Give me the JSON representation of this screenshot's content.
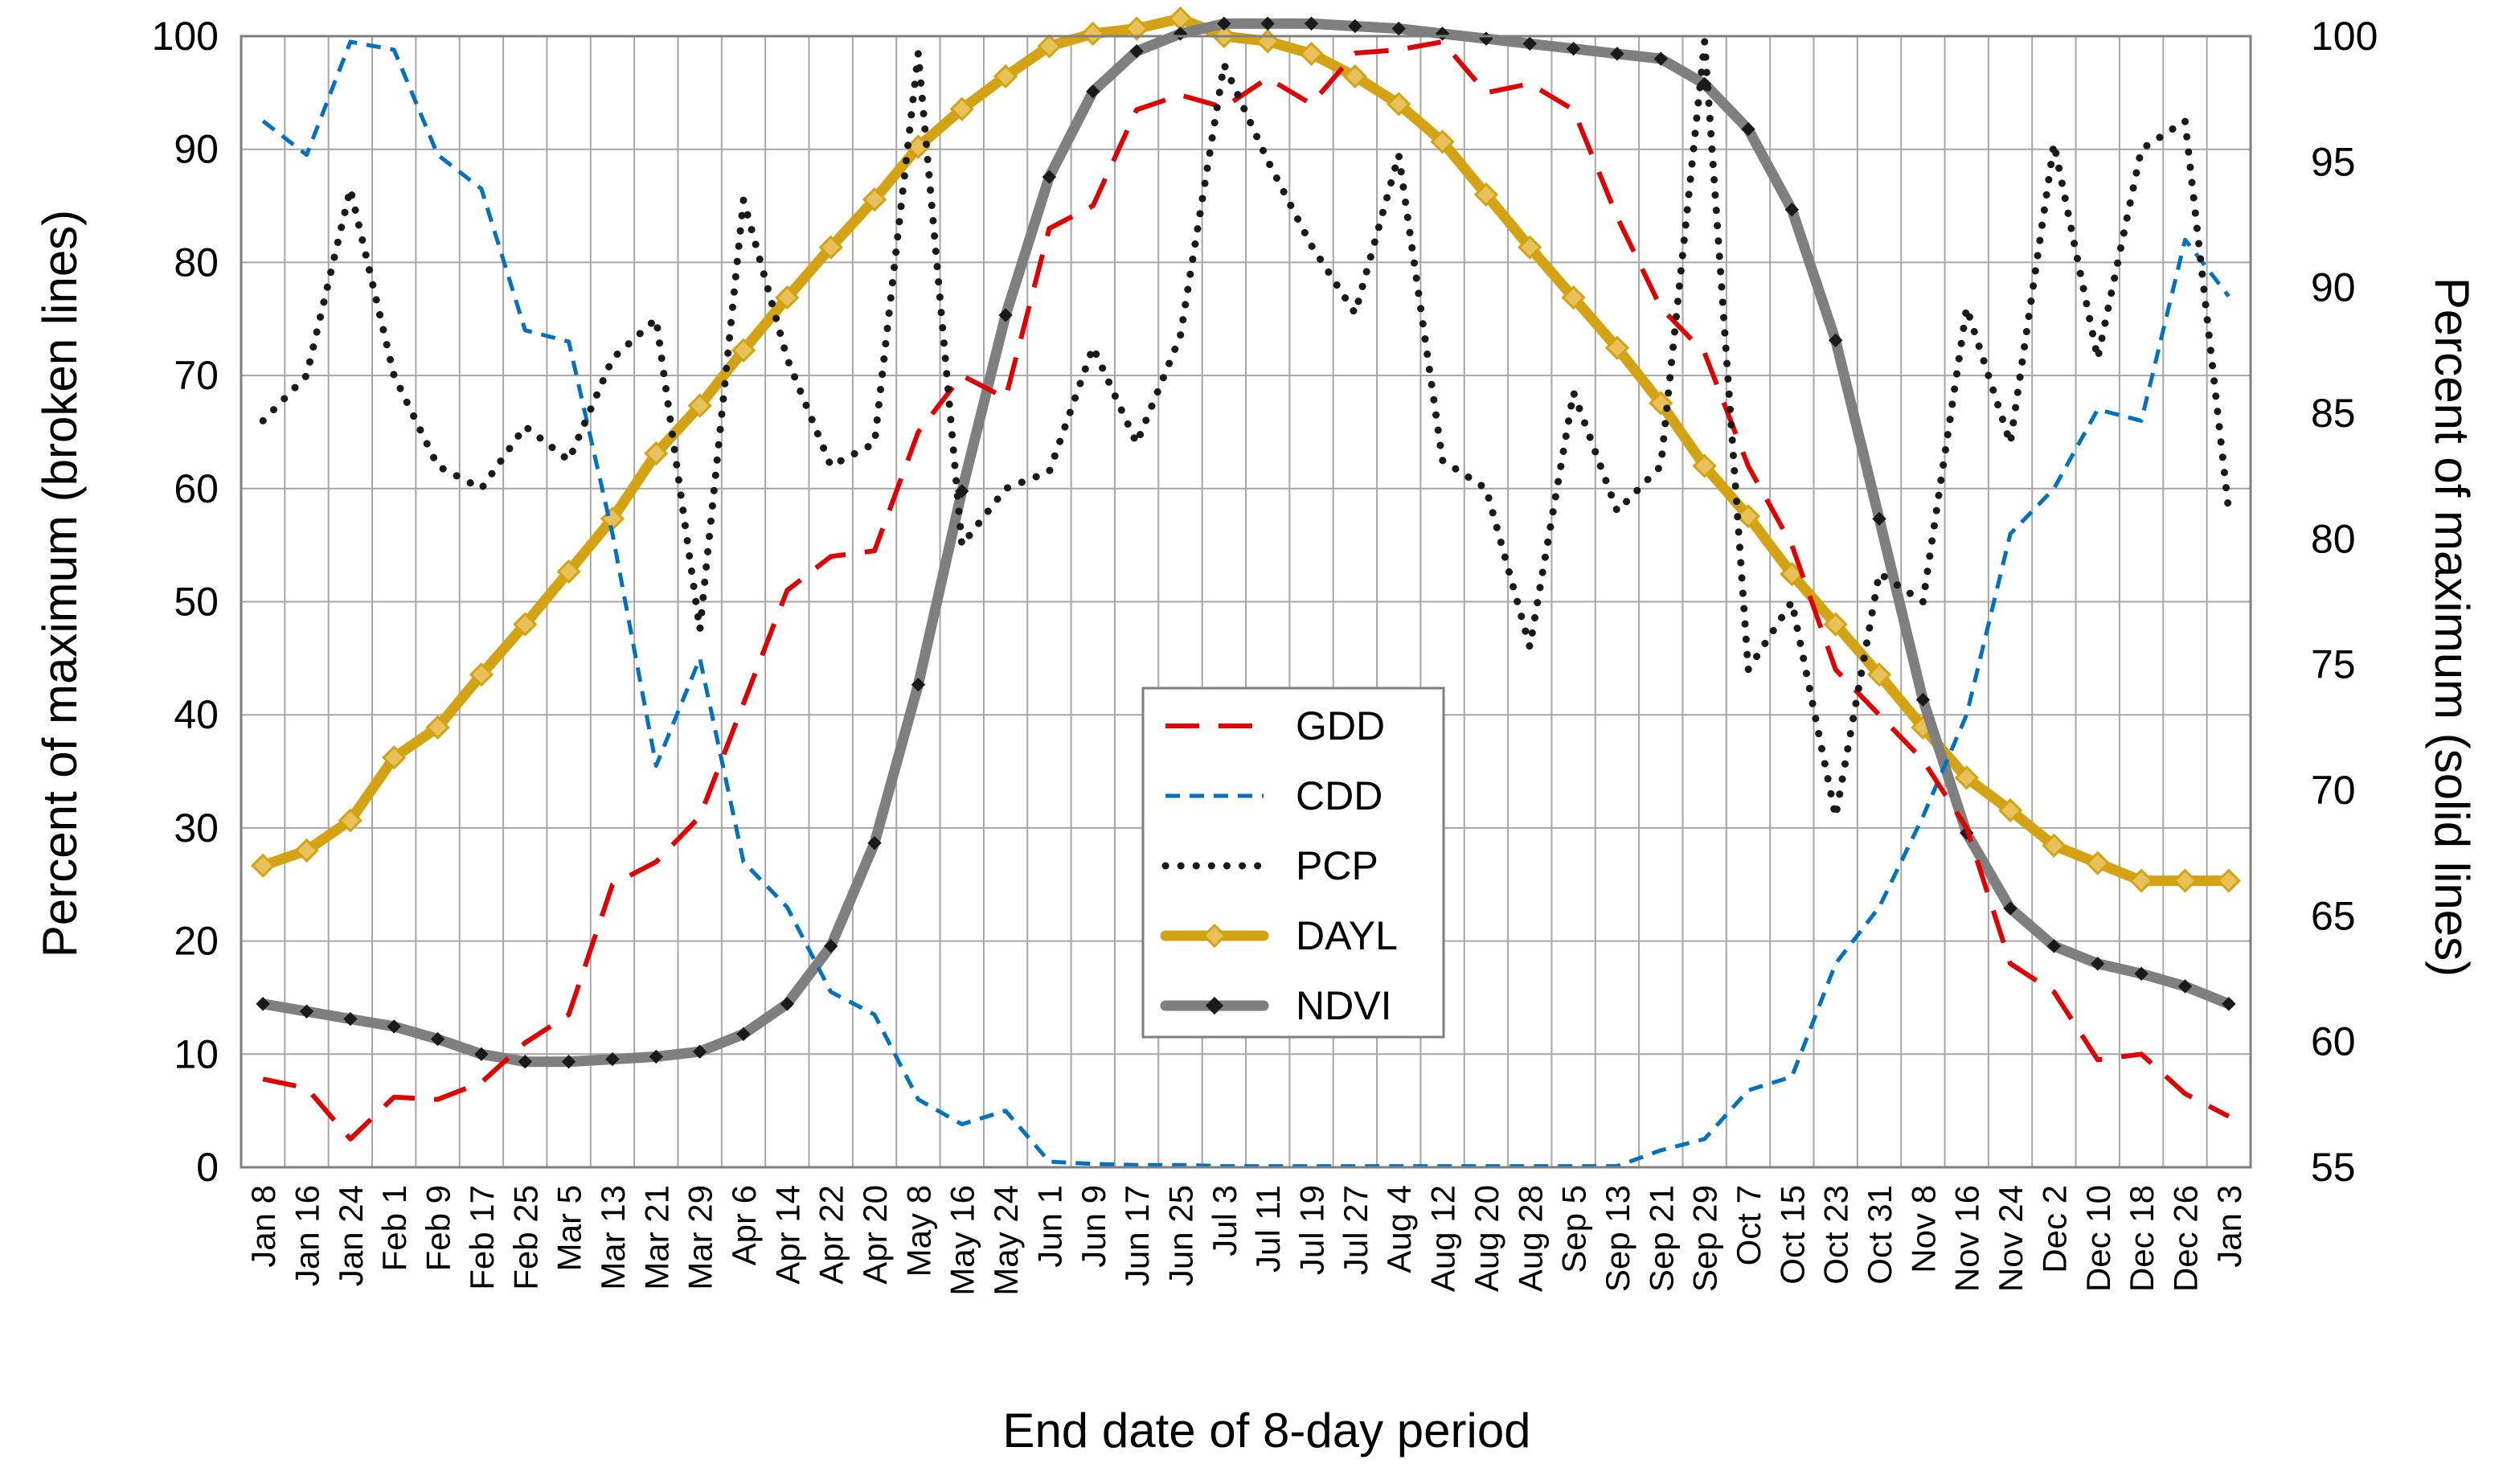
{
  "chart_data": {
    "type": "line",
    "title": "",
    "xlabel": "End date of 8-day period",
    "ylabel_left": "Percent of maximum (broken lines)",
    "ylabel_right": "Percent of maximum (solid lines)",
    "ylim_left": [
      0,
      100
    ],
    "yticks_left": [
      "0",
      "10",
      "20",
      "30",
      "40",
      "50",
      "60",
      "70",
      "80",
      "90",
      "100"
    ],
    "ylim_right": [
      55,
      100
    ],
    "yticks_right": [
      "55",
      "60",
      "65",
      "70",
      "75",
      "80",
      "85",
      "90",
      "95",
      "100"
    ],
    "grid": true,
    "legend_position": "center",
    "categories": [
      "Jan 8",
      "Jan 16",
      "Jan 24",
      "Feb 1",
      "Feb 9",
      "Feb 17",
      "Feb 25",
      "Mar 5",
      "Mar 13",
      "Mar 21",
      "Mar 29",
      "Apr 6",
      "Apr 14",
      "Apr 22",
      "Apr 20",
      "May 8",
      "May 16",
      "May 24",
      "Jun 1",
      "Jun 9",
      "Jun 17",
      "Jun 25",
      "Jul 3",
      "Jul 11",
      "Jul 19",
      "Jul 27",
      "Aug 4",
      "Aug 12",
      "Aug 20",
      "Aug 28",
      "Sep 5",
      "Sep 13",
      "Sep 21",
      "Sep 29",
      "Oct 7",
      "Oct 15",
      "Oct 23",
      "Oct 31",
      "Nov 8",
      "Nov 16",
      "Nov 24",
      "Dec 2",
      "Dec 10",
      "Dec 18",
      "Dec 26",
      "Jan 3"
    ],
    "series": [
      {
        "name": "GDD",
        "axis": "left",
        "style": "long-dash",
        "color": "#e00000",
        "values": [
          7.8,
          7,
          2.5,
          6.2,
          6,
          7.5,
          11,
          13.5,
          25,
          27,
          31,
          41,
          51,
          54,
          54.5,
          65,
          70,
          68,
          83,
          85,
          93.5,
          94.8,
          93.7,
          96.3,
          94,
          98.5,
          98.8,
          99.5,
          95,
          95.8,
          93.5,
          84,
          76,
          72,
          62,
          55,
          44,
          40,
          36,
          30,
          18,
          15.5,
          9.5,
          10,
          6.5,
          4.5
        ]
      },
      {
        "name": "CDD",
        "axis": "left",
        "style": "short-dash",
        "color": "#0070c0",
        "values": [
          92.5,
          89.5,
          99.5,
          98.8,
          89.5,
          86.5,
          74,
          73,
          56,
          35.5,
          45,
          27,
          23,
          15.5,
          13.5,
          6,
          3.8,
          5,
          0.5,
          0.3,
          0.2,
          0.2,
          0.1,
          0.1,
          0.1,
          0.1,
          0.1,
          0.1,
          0.1,
          0.1,
          0.1,
          0.1,
          1.5,
          2.5,
          6.8,
          8,
          18,
          23,
          31,
          40,
          56,
          60,
          67,
          66,
          82,
          77
        ]
      },
      {
        "name": "PCP",
        "axis": "left",
        "style": "dotted",
        "color": "#1a1a1a",
        "values": [
          66,
          70,
          86.5,
          70,
          62,
          60,
          65.5,
          62.5,
          71.5,
          75,
          47.5,
          85.5,
          71.5,
          62,
          64,
          98.5,
          55,
          60,
          61.5,
          72.5,
          64,
          73.5,
          97.5,
          89,
          81.5,
          75.5,
          89.5,
          62.5,
          60,
          46,
          68.5,
          58,
          62,
          99.5,
          44,
          50,
          31,
          52.5,
          50,
          76,
          64,
          90.5,
          71.5,
          90,
          92.5,
          58
        ]
      },
      {
        "name": "DAYL",
        "axis": "right",
        "style": "solid",
        "color": "#d4a314",
        "values": [
          67,
          67.6,
          68.8,
          71.3,
          72.5,
          74.6,
          76.6,
          78.7,
          80.8,
          83.4,
          85.3,
          87.5,
          89.6,
          91.6,
          93.5,
          95.6,
          97.1,
          98.4,
          99.6,
          100.1,
          100.3,
          100.7,
          100,
          99.8,
          99.3,
          98.4,
          97.3,
          95.8,
          93.7,
          91.6,
          89.6,
          87.6,
          85.4,
          82.9,
          80.9,
          78.6,
          76.6,
          74.6,
          72.5,
          70.5,
          69.2,
          67.8,
          67.1,
          66.4,
          66.4,
          66.4
        ]
      },
      {
        "name": "NDVI",
        "axis": "right",
        "style": "solid",
        "color": "#7f7f7f",
        "values": [
          61.5,
          61.2,
          60.9,
          60.6,
          60.1,
          59.5,
          59.2,
          59.2,
          59.3,
          59.4,
          59.6,
          60.3,
          61.5,
          63.8,
          67.9,
          74.2,
          81.9,
          88.9,
          94.4,
          97.8,
          99.4,
          100.1,
          100.5,
          100.5,
          100.5,
          100.4,
          100.3,
          100.1,
          99.9,
          99.7,
          99.5,
          99.3,
          99.1,
          98.1,
          96.3,
          93.1,
          87.9,
          80.8,
          73.6,
          68.3,
          65.3,
          63.8,
          63.1,
          62.7,
          62.2,
          61.5
        ]
      }
    ]
  }
}
